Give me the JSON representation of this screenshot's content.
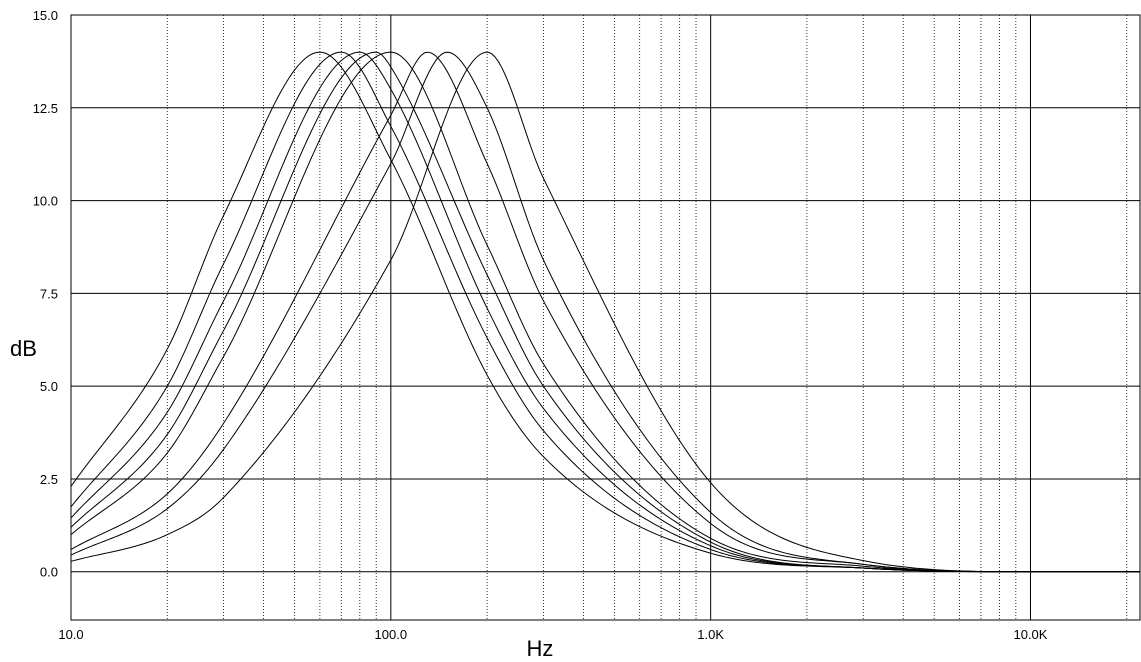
{
  "chart_data": {
    "type": "line",
    "xlabel": "Hz",
    "ylabel": "dB",
    "x_scale": "log",
    "xlim": [
      10,
      22000
    ],
    "ylim": [
      -1.3,
      15
    ],
    "grid": true,
    "x_ticks": [
      {
        "value": 10,
        "label": "10.0"
      },
      {
        "value": 100,
        "label": "100.0"
      },
      {
        "value": 1000,
        "label": "1.0K"
      },
      {
        "value": 10000,
        "label": "10.0K"
      }
    ],
    "y_ticks": [
      {
        "value": 0,
        "label": "0.0"
      },
      {
        "value": 2.5,
        "label": "2.5"
      },
      {
        "value": 5,
        "label": "5.0"
      },
      {
        "value": 7.5,
        "label": "7.5"
      },
      {
        "value": 10,
        "label": "10.0"
      },
      {
        "value": 12.5,
        "label": "12.5"
      },
      {
        "value": 15,
        "label": "15.0"
      }
    ],
    "series": [
      {
        "peak_hz": 60,
        "peak_db": 14,
        "x": [
          10,
          20,
          30,
          60,
          100,
          200,
          300,
          1000,
          3000,
          10000,
          22000
        ],
        "y": [
          2.3,
          6.0,
          9.6,
          14.0,
          11.1,
          5.3,
          3.1,
          0.5,
          0.1,
          0.0,
          0.0
        ]
      },
      {
        "peak_hz": 70,
        "peak_db": 14,
        "x": [
          10,
          20,
          30,
          70,
          100,
          200,
          300,
          1000,
          3000,
          10000,
          22000
        ],
        "y": [
          1.75,
          5.0,
          8.3,
          14.0,
          12.0,
          6.3,
          3.8,
          0.6,
          0.1,
          0.0,
          0.0
        ]
      },
      {
        "peak_hz": 80,
        "peak_db": 14,
        "x": [
          10,
          20,
          30,
          80,
          100,
          200,
          300,
          1000,
          3000,
          10000,
          22000
        ],
        "y": [
          1.45,
          4.3,
          7.3,
          14.0,
          13.0,
          7.1,
          4.4,
          0.7,
          0.1,
          0.0,
          0.0
        ]
      },
      {
        "peak_hz": 90,
        "peak_db": 14,
        "x": [
          10,
          20,
          30,
          90,
          100,
          200,
          300,
          1000,
          3000,
          10000,
          22000
        ],
        "y": [
          1.2,
          3.7,
          6.5,
          14.0,
          13.6,
          8.0,
          5.0,
          0.8,
          0.1,
          0.0,
          0.0
        ]
      },
      {
        "peak_hz": 100,
        "peak_db": 14,
        "x": [
          10,
          20,
          30,
          100,
          200,
          300,
          1000,
          3000,
          10000,
          22000
        ],
        "y": [
          1.0,
          3.2,
          5.8,
          14.0,
          8.8,
          5.6,
          0.9,
          0.15,
          0.0,
          0.0
        ]
      },
      {
        "peak_hz": 130,
        "peak_db": 14,
        "x": [
          10,
          20,
          30,
          100,
          130,
          200,
          300,
          1000,
          3000,
          10000,
          22000
        ],
        "y": [
          0.6,
          2.1,
          4.0,
          12.3,
          14.0,
          11.0,
          7.3,
          1.3,
          0.2,
          0.0,
          0.0
        ]
      },
      {
        "peak_hz": 150,
        "peak_db": 14,
        "x": [
          10,
          20,
          30,
          100,
          150,
          200,
          300,
          1000,
          3000,
          10000,
          22000
        ],
        "y": [
          0.45,
          1.7,
          3.3,
          11.0,
          14.0,
          12.5,
          8.4,
          1.6,
          0.2,
          0.0,
          0.0
        ]
      },
      {
        "peak_hz": 200,
        "peak_db": 14,
        "x": [
          10,
          20,
          30,
          100,
          200,
          300,
          1000,
          3000,
          10000,
          22000
        ],
        "y": [
          0.28,
          1.0,
          2.0,
          8.4,
          14.0,
          10.6,
          2.4,
          0.3,
          0.0,
          0.0
        ]
      }
    ]
  }
}
